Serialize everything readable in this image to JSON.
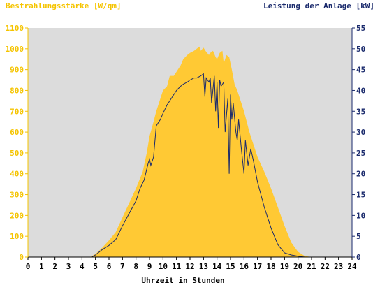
{
  "chart_data": {
    "type": "area",
    "title_left": "Bestrahlungsstärke [W/qm]",
    "title_right": "Leistung der Anlage [kW]",
    "xlabel": "Uhrzeit in Stunden",
    "x_ticks": [
      "0",
      "1",
      "2",
      "3",
      "4",
      "5",
      "6",
      "7",
      "8",
      "9",
      "10",
      "11",
      "12",
      "13",
      "14",
      "15",
      "16",
      "17",
      "18",
      "19",
      "20",
      "21",
      "22",
      "23",
      "24"
    ],
    "y_left_ticks": [
      "0",
      "100",
      "200",
      "300",
      "400",
      "500",
      "600",
      "700",
      "800",
      "900",
      "1000",
      "1100"
    ],
    "y_right_ticks": [
      "0",
      "5",
      "10",
      "15",
      "20",
      "25",
      "30",
      "35",
      "40",
      "45",
      "50",
      "55"
    ],
    "xlim": [
      0,
      24
    ],
    "ylim_left": [
      0,
      1100
    ],
    "ylim_right": [
      0,
      55
    ],
    "grid": false,
    "colors": {
      "plot_bg": "#dcdcdc",
      "irradiance": "#ffc934",
      "power": "#1a2a6c",
      "left_axis_text": "#f5c400",
      "right_axis_text": "#1a2a6c"
    },
    "series": [
      {
        "axis": "left",
        "style": "area",
        "x": [
          0,
          4.6,
          5.0,
          5.5,
          6.0,
          6.5,
          7.0,
          7.5,
          8.0,
          8.5,
          8.8,
          9.0,
          9.3,
          9.5,
          10.0,
          10.3,
          10.5,
          10.8,
          11.0,
          11.3,
          11.5,
          11.8,
          12.0,
          12.3,
          12.5,
          12.7,
          12.8,
          13.0,
          13.2,
          13.4,
          13.5,
          13.7,
          13.9,
          14.0,
          14.2,
          14.4,
          14.5,
          14.7,
          14.9,
          15.0,
          15.1,
          15.3,
          15.5,
          15.7,
          15.9,
          16.0,
          16.2,
          16.4,
          16.6,
          16.8,
          17.0,
          17.5,
          18.0,
          18.5,
          19.0,
          19.5,
          20.0,
          20.5,
          21.0,
          24
        ],
        "values": [
          0,
          0,
          15,
          45,
          80,
          120,
          190,
          260,
          330,
          410,
          500,
          580,
          650,
          700,
          800,
          820,
          870,
          870,
          890,
          920,
          950,
          970,
          980,
          990,
          1000,
          1010,
          990,
          1005,
          985,
          970,
          980,
          990,
          960,
          950,
          980,
          990,
          930,
          970,
          960,
          930,
          900,
          830,
          800,
          760,
          720,
          700,
          650,
          600,
          560,
          520,
          480,
          410,
          330,
          240,
          150,
          70,
          25,
          5,
          0,
          0
        ]
      },
      {
        "axis": "right",
        "style": "line",
        "x": [
          0,
          4.7,
          5.0,
          5.5,
          6.0,
          6.5,
          7.0,
          7.5,
          8.0,
          8.3,
          8.6,
          8.9,
          9.0,
          9.1,
          9.3,
          9.5,
          9.8,
          10.0,
          10.3,
          10.5,
          10.8,
          11.0,
          11.3,
          11.5,
          11.8,
          12.0,
          12.3,
          12.5,
          12.8,
          13.0,
          13.1,
          13.2,
          13.4,
          13.5,
          13.6,
          13.8,
          13.9,
          14.0,
          14.1,
          14.2,
          14.3,
          14.5,
          14.6,
          14.8,
          14.9,
          15.0,
          15.1,
          15.2,
          15.4,
          15.5,
          15.6,
          15.8,
          16.0,
          16.1,
          16.3,
          16.5,
          16.7,
          17.0,
          17.5,
          18.0,
          18.5,
          19.0,
          19.5,
          20.0,
          20.5,
          21.0,
          24
        ],
        "values": [
          0,
          0,
          0.5,
          1.8,
          2.8,
          4.2,
          7.5,
          10.5,
          13.5,
          16.5,
          18.5,
          22.5,
          23.5,
          22.0,
          24.0,
          31.5,
          33.0,
          34.5,
          36.5,
          37.5,
          39.0,
          40.0,
          41.0,
          41.5,
          42.0,
          42.5,
          43.0,
          43.0,
          43.5,
          44.0,
          38.5,
          43.0,
          42.0,
          43.0,
          37.0,
          43.5,
          35.0,
          42.0,
          31.0,
          42.5,
          41.0,
          42.0,
          30.0,
          38.0,
          20.0,
          39.0,
          33.0,
          37.0,
          30.0,
          28.0,
          33.0,
          26.0,
          20.0,
          28.0,
          22.0,
          26.0,
          23.0,
          18.0,
          12.0,
          7.0,
          3.0,
          1.0,
          0.5,
          0.2,
          0,
          0,
          0
        ]
      }
    ]
  }
}
